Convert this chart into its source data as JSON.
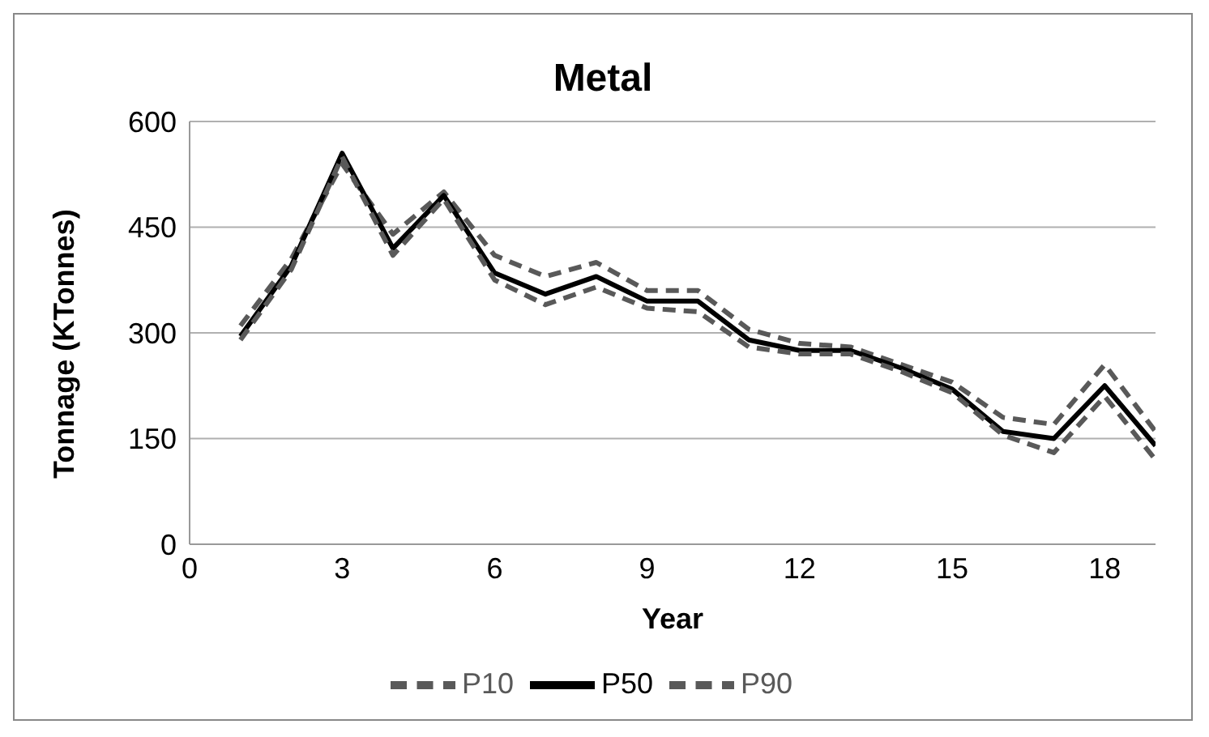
{
  "chart_data": {
    "type": "line",
    "title": "Metal",
    "xlabel": "Year",
    "ylabel": "Tonnage (KTonnes)",
    "x": [
      1,
      2,
      3,
      4,
      5,
      6,
      7,
      8,
      9,
      10,
      11,
      12,
      13,
      14,
      15,
      16,
      17,
      18,
      19
    ],
    "xlim": [
      0,
      19
    ],
    "xticks": [
      0,
      3,
      6,
      9,
      12,
      15,
      18
    ],
    "ylim": [
      0,
      600
    ],
    "yticks": [
      0,
      150,
      300,
      450,
      600
    ],
    "grid": "y",
    "legend": "bottom",
    "marker": "none",
    "series": [
      {
        "name": "P10",
        "color": "#595959",
        "line_style": "dashed",
        "values": [
          310,
          405,
          540,
          440,
          500,
          410,
          380,
          400,
          360,
          360,
          305,
          285,
          280,
          255,
          230,
          180,
          170,
          255,
          160
        ]
      },
      {
        "name": "P50",
        "color": "#000000",
        "line_style": "solid",
        "values": [
          295,
          395,
          555,
          420,
          495,
          385,
          355,
          380,
          345,
          345,
          290,
          275,
          275,
          250,
          220,
          160,
          150,
          225,
          140
        ]
      },
      {
        "name": "P90",
        "color": "#595959",
        "line_style": "dashed",
        "values": [
          290,
          390,
          550,
          410,
          490,
          375,
          340,
          365,
          335,
          330,
          280,
          270,
          270,
          245,
          215,
          155,
          130,
          210,
          120
        ]
      }
    ]
  }
}
